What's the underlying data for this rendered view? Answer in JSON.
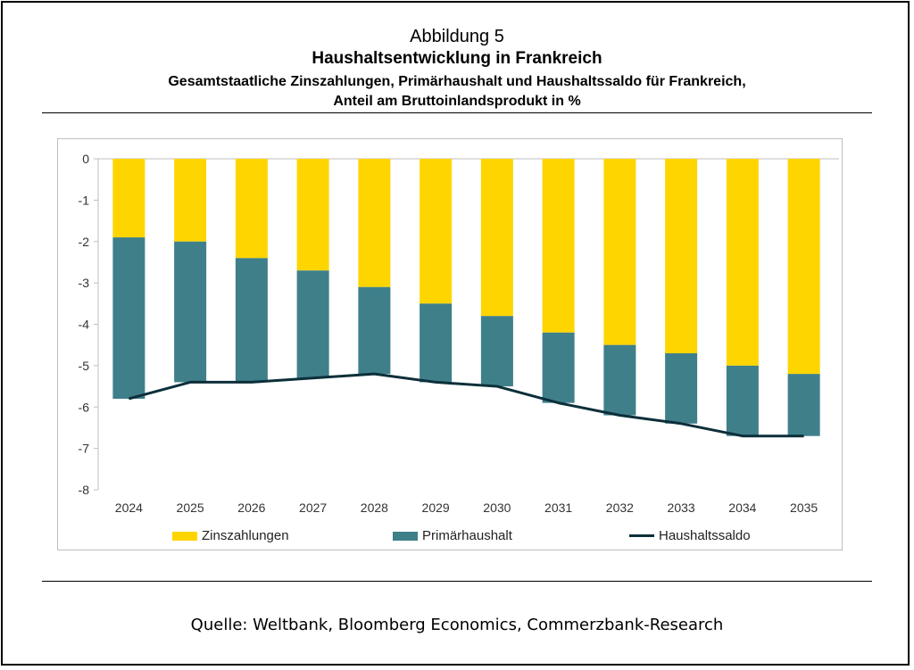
{
  "figure": {
    "label": "Abbildung 5",
    "title": "Haushaltsentwicklung in Frankreich",
    "subtitle_line1": "Gesamtstaatliche Zinszahlungen, Primärhaushalt und Haushaltssaldo für Frankreich,",
    "subtitle_line2": "Anteil am Bruttoinlandsprodukt in %",
    "source": "Quelle: Weltbank, Bloomberg Economics, Commerzbank-Research"
  },
  "chart_data": {
    "type": "bar",
    "stacked": true,
    "categories": [
      "2024",
      "2025",
      "2026",
      "2027",
      "2028",
      "2029",
      "2030",
      "2031",
      "2032",
      "2033",
      "2034",
      "2035"
    ],
    "series": [
      {
        "name": "Zinszahlungen",
        "kind": "bar",
        "color": "#ffd500",
        "values": [
          -1.9,
          -2.0,
          -2.4,
          -2.7,
          -3.1,
          -3.5,
          -3.8,
          -4.2,
          -4.5,
          -4.7,
          -5.0,
          -5.2
        ]
      },
      {
        "name": "Primärhaushalt",
        "kind": "bar",
        "color": "#3f7f8a",
        "values": [
          -3.9,
          -3.4,
          -3.0,
          -2.6,
          -2.1,
          -1.9,
          -1.7,
          -1.7,
          -1.7,
          -1.7,
          -1.7,
          -1.5
        ]
      },
      {
        "name": "Haushaltssaldo",
        "kind": "line",
        "color": "#0c2f3a",
        "values": [
          -5.8,
          -5.4,
          -5.4,
          -5.3,
          -5.2,
          -5.4,
          -5.5,
          -5.9,
          -6.2,
          -6.4,
          -6.7,
          -6.7
        ]
      }
    ],
    "ylim": [
      -8,
      0
    ],
    "yticks": [
      "0",
      "-1",
      "-2",
      "-3",
      "-4",
      "-5",
      "-6",
      "-7",
      "-8"
    ],
    "grid": false,
    "legend_position": "bottom"
  }
}
